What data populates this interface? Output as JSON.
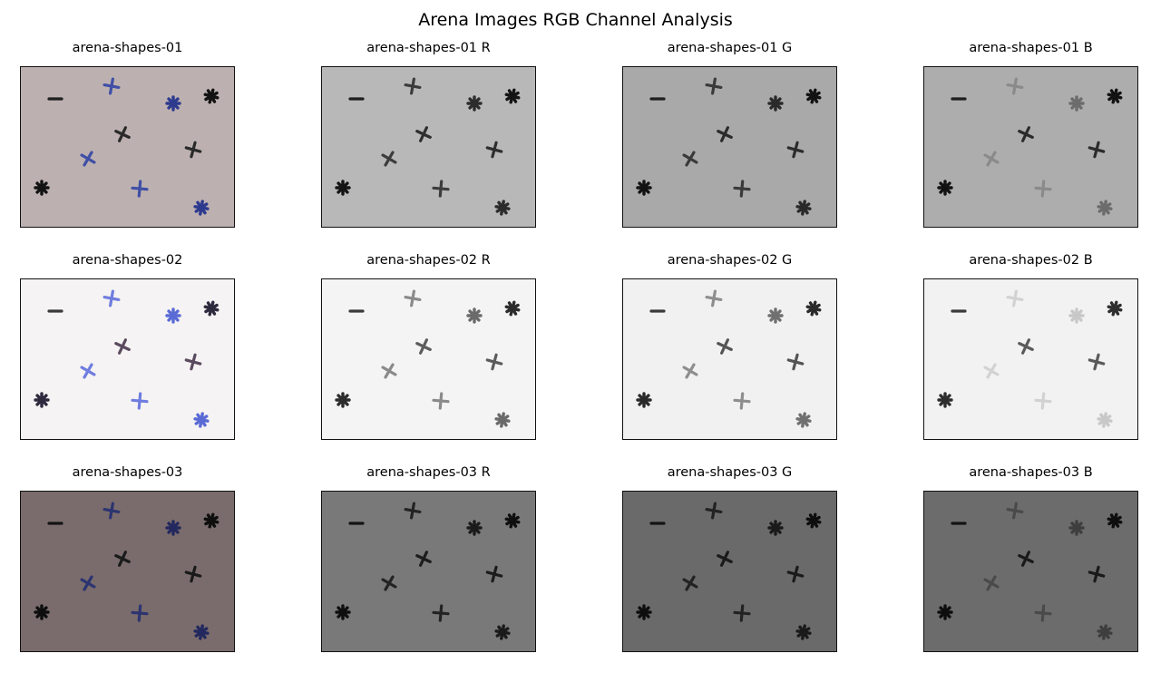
{
  "figure": {
    "title": "Arena Images RGB Channel Analysis"
  },
  "rows": [
    {
      "panels": [
        {
          "title": "arena-shapes-01",
          "bg": "#bcb0b0",
          "stroke": "#1a1a1a",
          "fills": {
            "line": "#1e1e1e",
            "cross": "#2a2a2a",
            "star": "#121212",
            "blue_cross": "#3f4fa6",
            "blue_star": "#2d3a8e"
          }
        },
        {
          "title": "arena-shapes-01 R",
          "bg": "#b8b8b8",
          "stroke": "#1a1a1a",
          "fills": {
            "line": "#1e1e1e",
            "cross": "#2e2e2e",
            "star": "#141414",
            "blue_cross": "#3c3c3c",
            "blue_star": "#2c2c2c"
          }
        },
        {
          "title": "arena-shapes-01 G",
          "bg": "#a9a9a9",
          "stroke": "#1a1a1a",
          "fills": {
            "line": "#1e1e1e",
            "cross": "#2b2b2b",
            "star": "#121212",
            "blue_cross": "#3a3a3a",
            "blue_star": "#2a2a2a"
          }
        },
        {
          "title": "arena-shapes-01 B",
          "bg": "#adadad",
          "stroke": "#1a1a1a",
          "fills": {
            "line": "#1e1e1e",
            "cross": "#2b2b2b",
            "star": "#121212",
            "blue_cross": "#8a8a8a",
            "blue_star": "#6c6c6c"
          }
        }
      ]
    },
    {
      "panels": [
        {
          "title": "arena-shapes-02",
          "bg": "#f5f3f3",
          "stroke": "#1a1a1a",
          "fills": {
            "line": "#3a3a3a",
            "cross": "#5a4a5e",
            "star": "#2e2a3e",
            "blue_cross": "#6f7ddf",
            "blue_star": "#5b6bd6"
          }
        },
        {
          "title": "arena-shapes-02 R",
          "bg": "#f4f4f4",
          "stroke": "#1a1a1a",
          "fills": {
            "line": "#3a3a3a",
            "cross": "#5c5c5c",
            "star": "#2c2c2c",
            "blue_cross": "#8a8a8a",
            "blue_star": "#6a6a6a"
          }
        },
        {
          "title": "arena-shapes-02 G",
          "bg": "#f1f1f1",
          "stroke": "#1a1a1a",
          "fills": {
            "line": "#3a3a3a",
            "cross": "#545454",
            "star": "#2a2a2a",
            "blue_cross": "#8e8e8e",
            "blue_star": "#707070"
          }
        },
        {
          "title": "arena-shapes-02 B",
          "bg": "#f2f2f2",
          "stroke": "#1a1a1a",
          "fills": {
            "line": "#3a3a3a",
            "cross": "#5a5a5a",
            "star": "#2e2e2e",
            "blue_cross": "#d2d2d2",
            "blue_star": "#c8c8c8"
          }
        }
      ]
    },
    {
      "panels": [
        {
          "title": "arena-shapes-03",
          "bg": "#7a6c6c",
          "stroke": "#1a1a1a",
          "fills": {
            "line": "#141414",
            "cross": "#1a1a1a",
            "star": "#0e0e0e",
            "blue_cross": "#2c3470",
            "blue_star": "#23295e"
          }
        },
        {
          "title": "arena-shapes-03 R",
          "bg": "#797979",
          "stroke": "#1a1a1a",
          "fills": {
            "line": "#141414",
            "cross": "#1c1c1c",
            "star": "#0f0f0f",
            "blue_cross": "#232323",
            "blue_star": "#1b1b1b"
          }
        },
        {
          "title": "arena-shapes-03 G",
          "bg": "#6a6a6a",
          "stroke": "#1a1a1a",
          "fills": {
            "line": "#141414",
            "cross": "#1a1a1a",
            "star": "#0e0e0e",
            "blue_cross": "#222222",
            "blue_star": "#1a1a1a"
          }
        },
        {
          "title": "arena-shapes-03 B",
          "bg": "#6c6c6c",
          "stroke": "#1a1a1a",
          "fills": {
            "line": "#141414",
            "cross": "#1a1a1a",
            "star": "#0e0e0e",
            "blue_cross": "#4a4a4a",
            "blue_star": "#3e3e3e"
          }
        }
      ]
    }
  ],
  "shape_types": [
    "line",
    "cross",
    "star",
    "blue_cross",
    "blue_star"
  ]
}
